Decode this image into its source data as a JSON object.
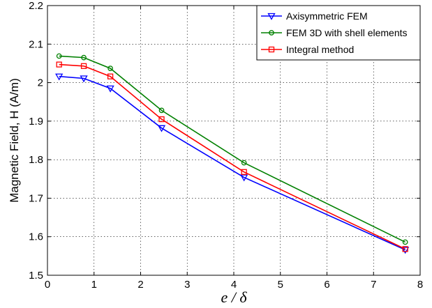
{
  "chart_data": {
    "type": "line",
    "xlabel": "e / δ",
    "ylabel": "Magnetic Field, H (A/m)",
    "xlim": [
      0,
      8
    ],
    "ylim": [
      1.5,
      2.2
    ],
    "xticks": [
      "0",
      "1",
      "2",
      "3",
      "4",
      "5",
      "6",
      "7",
      "8"
    ],
    "yticks": [
      "1.5",
      "1.6",
      "1.7",
      "1.8",
      "1.9",
      "2",
      "2.1",
      "2.2"
    ],
    "grid": true,
    "legend_position": "top-right",
    "series": [
      {
        "name": "Axisymmetric FEM",
        "color": "#0000ff",
        "marker": "triangle-down",
        "x": [
          0.25,
          0.78,
          1.35,
          2.45,
          4.22,
          7.68
        ],
        "y": [
          2.016,
          2.011,
          1.985,
          1.882,
          1.754,
          1.566
        ]
      },
      {
        "name": "FEM 3D with shell elements",
        "color": "#008000",
        "marker": "circle",
        "x": [
          0.25,
          0.78,
          1.35,
          2.45,
          4.22,
          7.68
        ],
        "y": [
          2.069,
          2.065,
          2.037,
          1.928,
          1.792,
          1.586
        ]
      },
      {
        "name": "Integral method",
        "color": "#ff0000",
        "marker": "square",
        "x": [
          0.25,
          0.78,
          1.35,
          2.45,
          4.22,
          7.68
        ],
        "y": [
          2.047,
          2.043,
          2.016,
          1.905,
          1.768,
          1.568
        ]
      }
    ]
  }
}
